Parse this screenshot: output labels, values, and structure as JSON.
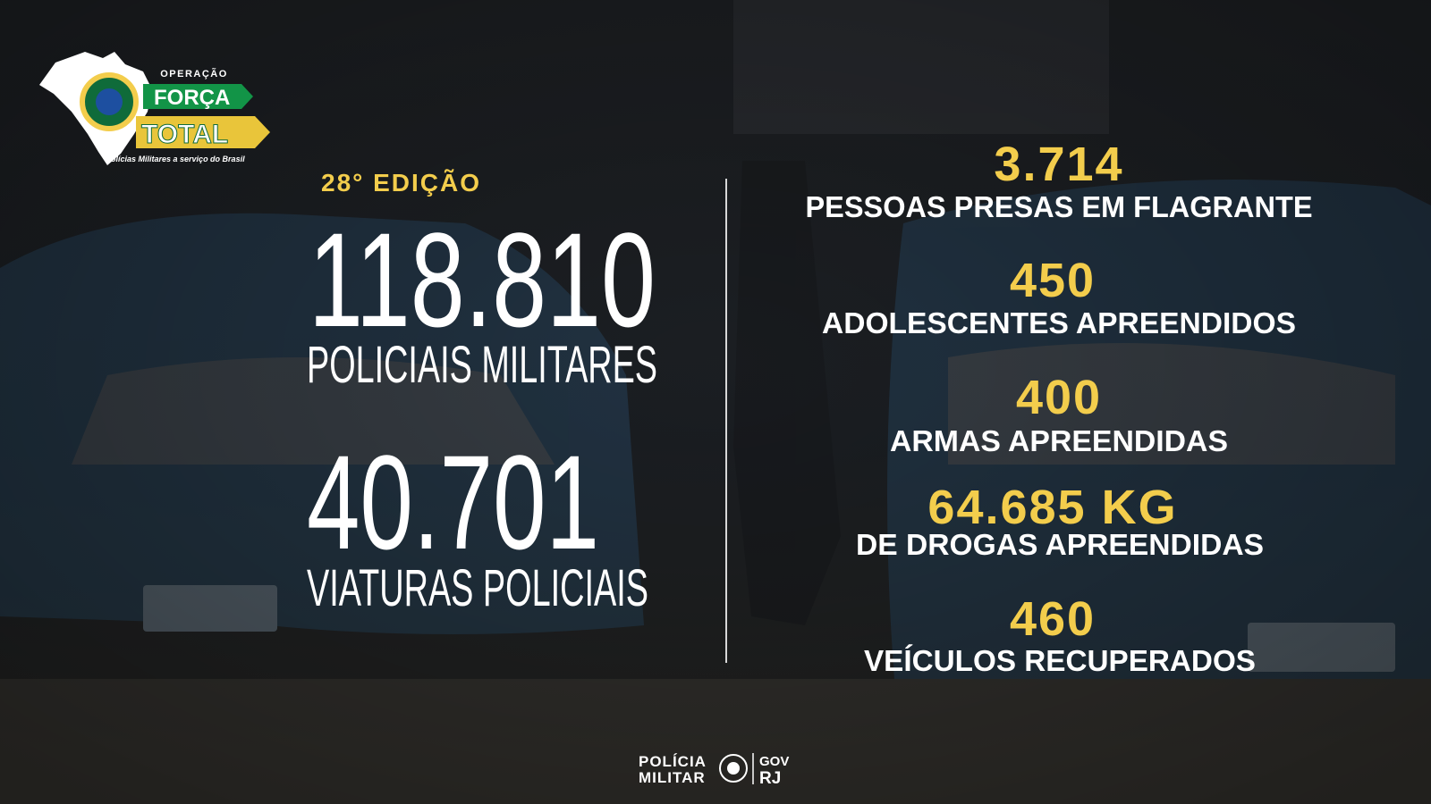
{
  "logo": {
    "eyebrow": "OPERAÇÃO",
    "title_line1": "FORÇA",
    "title_line2": "TOTAL",
    "tagline": "Polícias Militares a serviço do Brasil"
  },
  "edition": "28° EDIÇÃO",
  "highlights": [
    {
      "value": "118.810",
      "label": "POLICIAIS MILITARES"
    },
    {
      "value": "40.701",
      "label": "VIATURAS POLICIAIS"
    }
  ],
  "results": [
    {
      "value": "3.714",
      "label": "PESSOAS PRESAS EM FLAGRANTE"
    },
    {
      "value": "450",
      "label": "ADOLESCENTES APREENDIDOS"
    },
    {
      "value": "400",
      "label": "ARMAS APREENDIDAS"
    },
    {
      "value": "64.685 KG",
      "label": "DE DROGAS APREENDIDAS"
    },
    {
      "value": "460",
      "label": "VEÍCULOS RECUPERADOS"
    }
  ],
  "footer": {
    "institution_line1": "POLÍCIA",
    "institution_line2": "MILITAR",
    "government_line1": "GOV",
    "government_line2": "RJ"
  }
}
